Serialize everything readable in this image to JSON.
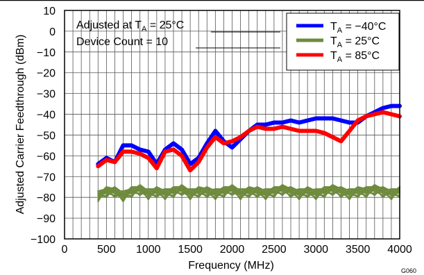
{
  "chart_data": {
    "type": "line",
    "xlabel": "Frequency (MHz)",
    "ylabel": "Adjusted Carrier Feedthrough (dBm)",
    "xlim": [
      0,
      4000
    ],
    "ylim": [
      -100,
      10
    ],
    "xticks": [
      "0",
      "500",
      "1000",
      "1500",
      "2000",
      "2500",
      "3000",
      "3500",
      "4000"
    ],
    "yticks": [
      "10",
      "0",
      "−10",
      "−20",
      "−30",
      "−40",
      "−50",
      "−60",
      "−70",
      "−80",
      "−90",
      "−100"
    ],
    "grid": true,
    "legend_position": "top-right",
    "annotation_lines": {
      "line1_prefix": "Adjusted at T",
      "line1_sub": "A",
      "line1_suffix": " = 25°C",
      "line2": "Device Count = 10"
    },
    "figure_code": "G060",
    "x": [
      400,
      500,
      600,
      700,
      800,
      900,
      1000,
      1100,
      1200,
      1300,
      1400,
      1500,
      1600,
      1700,
      1800,
      1900,
      2000,
      2100,
      2200,
      2300,
      2400,
      2500,
      2600,
      2700,
      2800,
      2900,
      3000,
      3100,
      3200,
      3300,
      3400,
      3500,
      3600,
      3700,
      3800,
      3900,
      4000
    ],
    "series": [
      {
        "name_prefix": "T",
        "name_sub": "A",
        "name_suffix": " = −40°C",
        "color": "#0000ff",
        "values": [
          -64,
          -61,
          -63,
          -55,
          -55,
          -57,
          -58,
          -64,
          -57,
          -54,
          -57,
          -64,
          -61,
          -54,
          -48,
          -53,
          -56,
          -52,
          -48,
          -45,
          -45,
          -44,
          -44,
          -43,
          -44,
          -43,
          -42,
          -42,
          -42,
          -43,
          -44,
          -44,
          -41,
          -39,
          -37,
          -36,
          -36
        ]
      },
      {
        "name_prefix": "T",
        "name_sub": "A",
        "name_suffix": " = 25°C",
        "color": "#6e8b3d",
        "values": [
          -82,
          -80,
          -80,
          -82,
          -80,
          -79,
          -81,
          -80,
          -81,
          -80,
          -79,
          -81,
          -80,
          -80,
          -81,
          -80,
          -79,
          -81,
          -80,
          -80,
          -81,
          -80,
          -79,
          -80,
          -81,
          -80,
          -81,
          -80,
          -79,
          -80,
          -81,
          -80,
          -80,
          -79,
          -80,
          -81,
          -80
        ]
      },
      {
        "name_prefix": "T",
        "name_sub": "A",
        "name_suffix": " = 85°C",
        "color": "#ff0000",
        "values": [
          -65,
          -62,
          -63,
          -58,
          -58,
          -59,
          -61,
          -66,
          -58,
          -57,
          -60,
          -67,
          -63,
          -56,
          -51,
          -54,
          -53,
          -51,
          -48,
          -46,
          -47,
          -47,
          -46,
          -47,
          -48,
          -48,
          -48,
          -49,
          -51,
          -53,
          -48,
          -43,
          -41,
          -40,
          -39,
          -40,
          -41
        ]
      }
    ]
  }
}
